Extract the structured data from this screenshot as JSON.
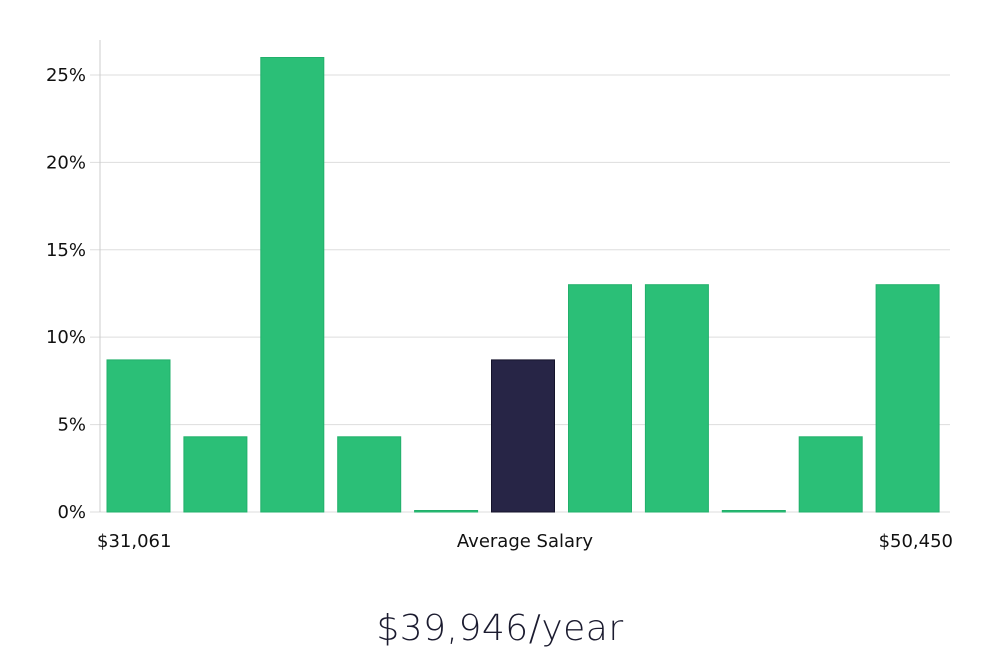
{
  "chart_data": {
    "type": "bar",
    "xlabel": "Average Salary",
    "x_range_labels": {
      "min": "$31,061",
      "max": "$50,450"
    },
    "y_ticks": [
      "0%",
      "5%",
      "10%",
      "15%",
      "20%",
      "25%"
    ],
    "ylim": [
      0,
      27
    ],
    "values": [
      8.7,
      4.3,
      26.0,
      4.3,
      0,
      8.7,
      13.0,
      13.0,
      0,
      4.3,
      13.0
    ],
    "highlight_index": 5,
    "colors": {
      "bar": "#2bbf77",
      "highlight": "#272546",
      "grid": "#dddddd",
      "axis": "#cccccc"
    },
    "grid": true
  },
  "summary": {
    "average_salary": "$39,946/year"
  }
}
